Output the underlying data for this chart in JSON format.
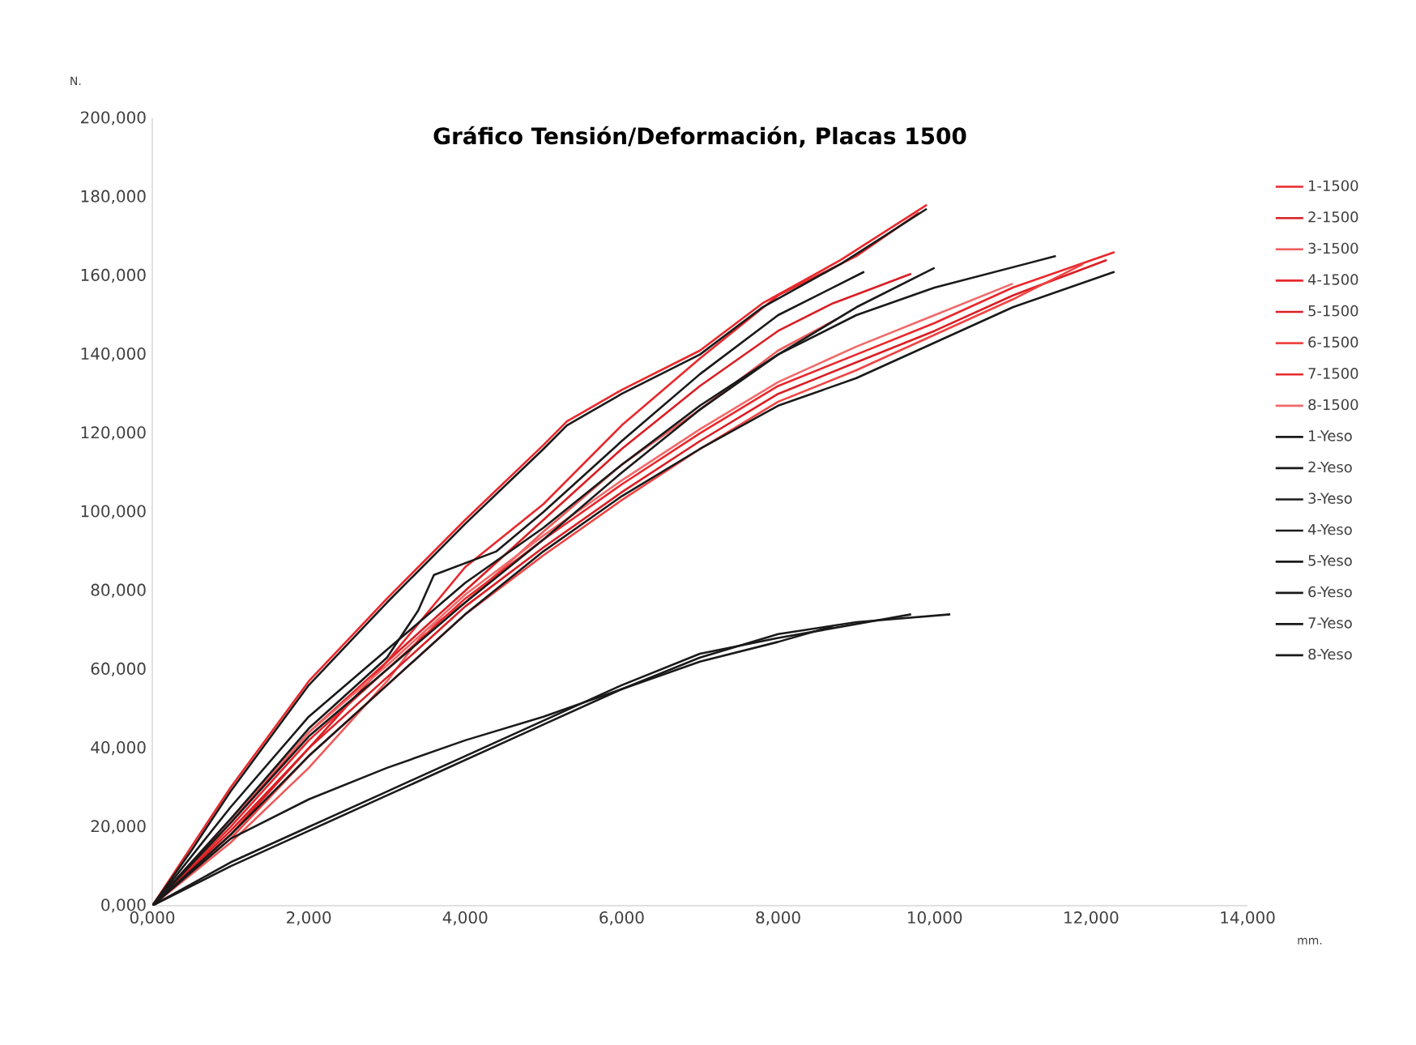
{
  "chart_data": {
    "type": "line",
    "title": "Gráfico Tensión/Deformación, Placas 1500",
    "xlabel": "mm.",
    "ylabel": "N.",
    "xlim": [
      0,
      14
    ],
    "ylim": [
      0,
      200
    ],
    "xticks": [
      {
        "value": 0,
        "label": "0,000"
      },
      {
        "value": 2,
        "label": "2,000"
      },
      {
        "value": 4,
        "label": "4,000"
      },
      {
        "value": 6,
        "label": "6,000"
      },
      {
        "value": 8,
        "label": "8,000"
      },
      {
        "value": 10,
        "label": "10,000"
      },
      {
        "value": 12,
        "label": "12,000"
      },
      {
        "value": 14,
        "label": "14,000"
      }
    ],
    "yticks": [
      {
        "value": 0,
        "label": "0,000"
      },
      {
        "value": 20,
        "label": "20,000"
      },
      {
        "value": 40,
        "label": "40,000"
      },
      {
        "value": 60,
        "label": "60,000"
      },
      {
        "value": 80,
        "label": "80,000"
      },
      {
        "value": 100,
        "label": "100,000"
      },
      {
        "value": 120,
        "label": "120,000"
      },
      {
        "value": 140,
        "label": "140,000"
      },
      {
        "value": 160,
        "label": "160,000"
      },
      {
        "value": 180,
        "label": "180,000"
      },
      {
        "value": 200,
        "label": "200,000"
      }
    ],
    "grid": false,
    "legend": "right",
    "marker": "none",
    "line_style": "solid",
    "series": [
      {
        "name": "1-1500",
        "color": "#e8282c",
        "x": [
          0,
          0.5,
          1,
          2,
          3,
          4,
          5,
          5.3,
          6,
          7,
          7.8,
          8.8,
          9.9
        ],
        "values": [
          0,
          15,
          30,
          57,
          78,
          98,
          117,
          123,
          131,
          141,
          153,
          164,
          178
        ]
      },
      {
        "name": "2-1500",
        "color": "#d91f24",
        "x": [
          0,
          1,
          2,
          3,
          4,
          5,
          6,
          7,
          8,
          8.7,
          9.7
        ],
        "values": [
          0,
          18,
          40,
          62,
          80,
          98,
          116,
          132,
          146,
          153,
          160.5
        ]
      },
      {
        "name": "3-1500",
        "color": "#ee5a5a",
        "x": [
          0,
          1,
          2,
          3,
          3.5,
          4,
          5,
          6,
          7,
          8,
          8.75
        ],
        "values": [
          0,
          16,
          35,
          57,
          70,
          77,
          95,
          112,
          126,
          141,
          149
        ]
      },
      {
        "name": "4-1500",
        "color": "#e8282c",
        "x": [
          0,
          1,
          2,
          3,
          4,
          5,
          6,
          7,
          8,
          9,
          10,
          11,
          12.3
        ],
        "values": [
          0,
          20,
          42,
          60,
          78,
          93,
          107,
          120,
          132,
          140,
          148,
          157,
          166
        ]
      },
      {
        "name": "5-1500",
        "color": "#d91f24",
        "x": [
          0,
          1,
          2,
          3,
          4,
          5,
          6,
          7,
          8,
          9,
          10,
          11,
          12.2
        ],
        "values": [
          0,
          19,
          40,
          58,
          76,
          91,
          105,
          118,
          130,
          138,
          146,
          155,
          164
        ]
      },
      {
        "name": "6-1500",
        "color": "#ee4444",
        "x": [
          0,
          1,
          2,
          3,
          4,
          5,
          6,
          7,
          8,
          9,
          10,
          11,
          11.9
        ],
        "values": [
          0,
          17,
          38,
          56,
          74,
          89,
          103,
          116,
          128,
          136,
          145,
          154,
          163
        ]
      },
      {
        "name": "7-1500",
        "color": "#e8282c",
        "x": [
          0,
          1,
          2,
          3,
          4,
          5,
          6,
          7,
          8,
          9,
          9.8
        ],
        "values": [
          0,
          21,
          44,
          62,
          86,
          102,
          122,
          139,
          155,
          165,
          176
        ]
      },
      {
        "name": "8-1500",
        "color": "#f06a6a",
        "x": [
          0,
          1,
          2,
          3,
          4,
          5,
          6,
          7,
          8,
          9,
          10,
          11
        ],
        "values": [
          0,
          22,
          44,
          61,
          79,
          94,
          108,
          121,
          133,
          142,
          150,
          158
        ]
      },
      {
        "name": "1-Yeso",
        "color": "#1a1a1a",
        "x": [
          0,
          0.5,
          1,
          2,
          3,
          4,
          5,
          5.3,
          6,
          7,
          7.8,
          8.8,
          9.9
        ],
        "values": [
          0,
          14,
          29,
          56,
          77,
          97,
          116,
          122,
          130,
          140,
          152,
          163,
          177
        ]
      },
      {
        "name": "2-Yeso",
        "color": "#1a1a1a",
        "x": [
          0,
          1,
          2,
          3,
          3.4,
          3.6,
          4.4,
          5,
          6,
          7,
          8,
          9.1
        ],
        "values": [
          0,
          22,
          45,
          63,
          75,
          84,
          90,
          100,
          118,
          135,
          150,
          161
        ]
      },
      {
        "name": "3-Yeso",
        "color": "#1a1a1a",
        "x": [
          0,
          1,
          2,
          3,
          4,
          5,
          6,
          7,
          8,
          9,
          10,
          11.55
        ],
        "values": [
          0,
          25,
          48,
          65,
          82,
          96,
          112,
          127,
          140,
          150,
          157,
          165
        ]
      },
      {
        "name": "4-Yeso",
        "color": "#1a1a1a",
        "x": [
          0,
          1,
          2,
          3,
          4,
          5,
          6,
          7,
          8,
          9,
          10,
          11,
          12.3
        ],
        "values": [
          0,
          18,
          38,
          56,
          74,
          90,
          104,
          116,
          127,
          134,
          143,
          152,
          161
        ]
      },
      {
        "name": "5-Yeso",
        "color": "#1a1a1a",
        "x": [
          0,
          1,
          2,
          3,
          4,
          5,
          6,
          7,
          8,
          9,
          10.2
        ],
        "values": [
          0,
          10,
          19,
          28,
          37,
          46,
          55,
          63,
          69,
          72,
          74
        ]
      },
      {
        "name": "6-Yeso",
        "color": "#1a1a1a",
        "x": [
          0,
          1,
          2,
          3,
          4,
          5,
          6,
          7,
          8,
          8.7
        ],
        "values": [
          0,
          17,
          27,
          35,
          42,
          48,
          55,
          62,
          67,
          71
        ]
      },
      {
        "name": "7-Yeso",
        "color": "#1a1a1a",
        "x": [
          0,
          1,
          2,
          3,
          4,
          5,
          6,
          7,
          8,
          9.7
        ],
        "values": [
          0,
          11,
          20,
          29,
          38,
          47,
          56,
          64,
          68,
          74
        ]
      },
      {
        "name": "8-Yeso",
        "color": "#1a1a1a",
        "x": [
          0,
          1,
          2,
          3,
          4,
          5,
          6,
          7,
          8,
          9,
          10
        ],
        "values": [
          0,
          21,
          43,
          60,
          77,
          93,
          110,
          126,
          140,
          152,
          162
        ]
      }
    ]
  }
}
